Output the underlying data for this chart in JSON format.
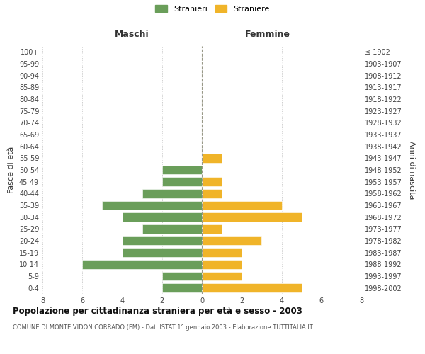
{
  "age_groups": [
    "100+",
    "95-99",
    "90-94",
    "85-89",
    "80-84",
    "75-79",
    "70-74",
    "65-69",
    "60-64",
    "55-59",
    "50-54",
    "45-49",
    "40-44",
    "35-39",
    "30-34",
    "25-29",
    "20-24",
    "15-19",
    "10-14",
    "5-9",
    "0-4"
  ],
  "birth_years": [
    "≤ 1902",
    "1903-1907",
    "1908-1912",
    "1913-1917",
    "1918-1922",
    "1923-1927",
    "1928-1932",
    "1933-1937",
    "1938-1942",
    "1943-1947",
    "1948-1952",
    "1953-1957",
    "1958-1962",
    "1963-1967",
    "1968-1972",
    "1973-1977",
    "1978-1982",
    "1983-1987",
    "1988-1992",
    "1993-1997",
    "1998-2002"
  ],
  "maschi": [
    0,
    0,
    0,
    0,
    0,
    0,
    0,
    0,
    0,
    0,
    2,
    2,
    3,
    5,
    4,
    3,
    4,
    4,
    6,
    2,
    2
  ],
  "femmine": [
    0,
    0,
    0,
    0,
    0,
    0,
    0,
    0,
    0,
    1,
    0,
    1,
    1,
    4,
    5,
    1,
    3,
    2,
    2,
    2,
    5
  ],
  "male_color": "#6a9e5a",
  "female_color": "#f0b429",
  "title": "Popolazione per cittadinanza straniera per età e sesso - 2003",
  "subtitle": "COMUNE DI MONTE VIDON CORRADO (FM) - Dati ISTAT 1° gennaio 2003 - Elaborazione TUTTITALIA.IT",
  "ylabel_left": "Fasce di età",
  "ylabel_right": "Anni di nascita",
  "xlabel_max": 8,
  "legend_male": "Stranieri",
  "legend_female": "Straniere",
  "header_left": "Maschi",
  "header_right": "Femmine",
  "background_color": "#ffffff",
  "grid_color": "#cccccc"
}
